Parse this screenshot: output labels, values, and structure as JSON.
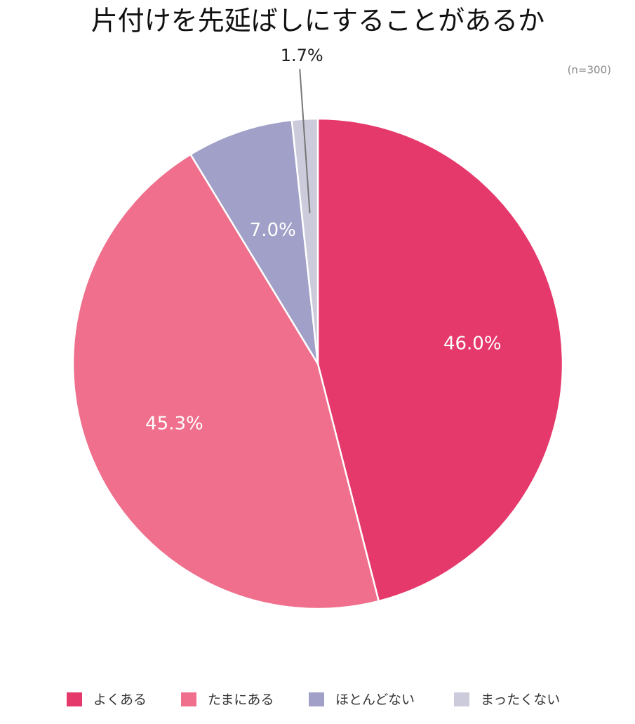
{
  "chart_data": {
    "type": "pie",
    "title": "片付けを先延ばしにすることがあるか",
    "subtitle": "(n=300)",
    "categories": [
      "よくある",
      "たまにある",
      "ほとんどない",
      "まったくない"
    ],
    "values": [
      46.0,
      45.3,
      7.0,
      1.7
    ],
    "value_labels": [
      "46.0%",
      "45.3%",
      "7.0%",
      "1.7%"
    ],
    "colors": [
      "#e5396c",
      "#ef6f8c",
      "#a0a0c8",
      "#cbcbdc"
    ],
    "legend": "bottom"
  }
}
